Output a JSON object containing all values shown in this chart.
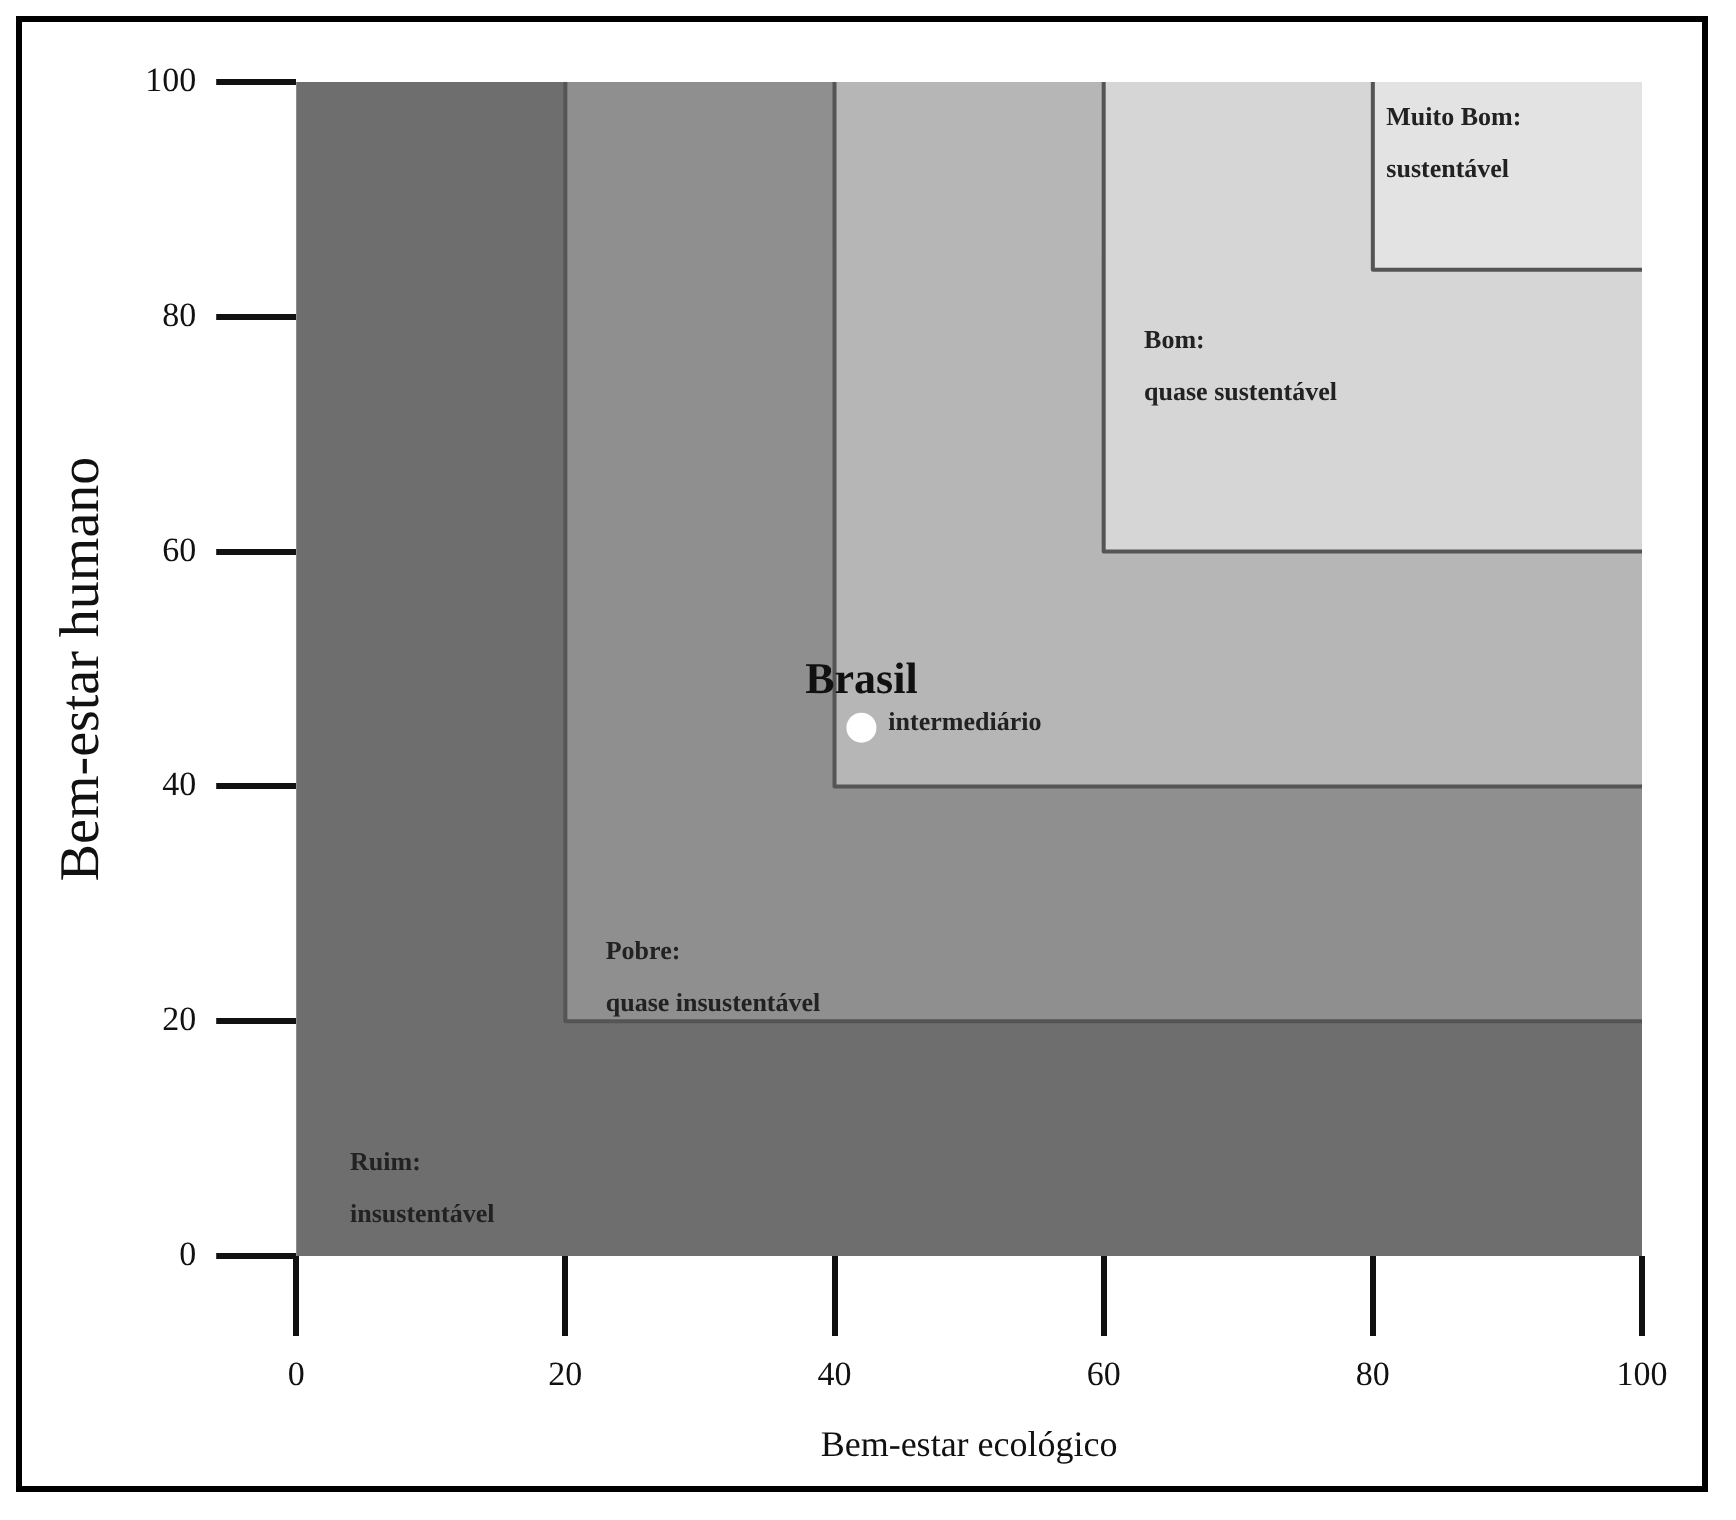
{
  "chart_data": {
    "type": "scatter",
    "xlabel": "Bem-estar ecológico",
    "ylabel": "Bem-estar humano",
    "xlim": [
      0,
      100
    ],
    "ylim": [
      0,
      100
    ],
    "xticks": [
      0,
      20,
      40,
      60,
      80,
      100
    ],
    "yticks": [
      0,
      20,
      40,
      60,
      80,
      100
    ],
    "series": [
      {
        "type": "line",
        "color": "#555555",
        "x": [
          20,
          20,
          100
        ],
        "values": [
          100,
          20,
          20
        ]
      },
      {
        "type": "line",
        "color": "#555555",
        "x": [
          40,
          40,
          100
        ],
        "values": [
          100,
          40,
          40
        ]
      },
      {
        "type": "line",
        "color": "#555555",
        "x": [
          60,
          60,
          100
        ],
        "values": [
          100,
          60,
          60
        ]
      },
      {
        "type": "line",
        "color": "#555555",
        "x": [
          80,
          80,
          100
        ],
        "values": [
          100,
          84,
          84
        ]
      },
      {
        "type": "scatter",
        "name": "Brasil",
        "color": "#ffffff",
        "x": [
          42
        ],
        "values": [
          45
        ]
      }
    ],
    "annotations": [
      "Muito Bom:\nsustentável",
      "Bom:\nquase sustentável",
      "intermediário",
      "Pobre:\nquase insustentável",
      "Ruim:\ninsustentável"
    ]
  }
}
